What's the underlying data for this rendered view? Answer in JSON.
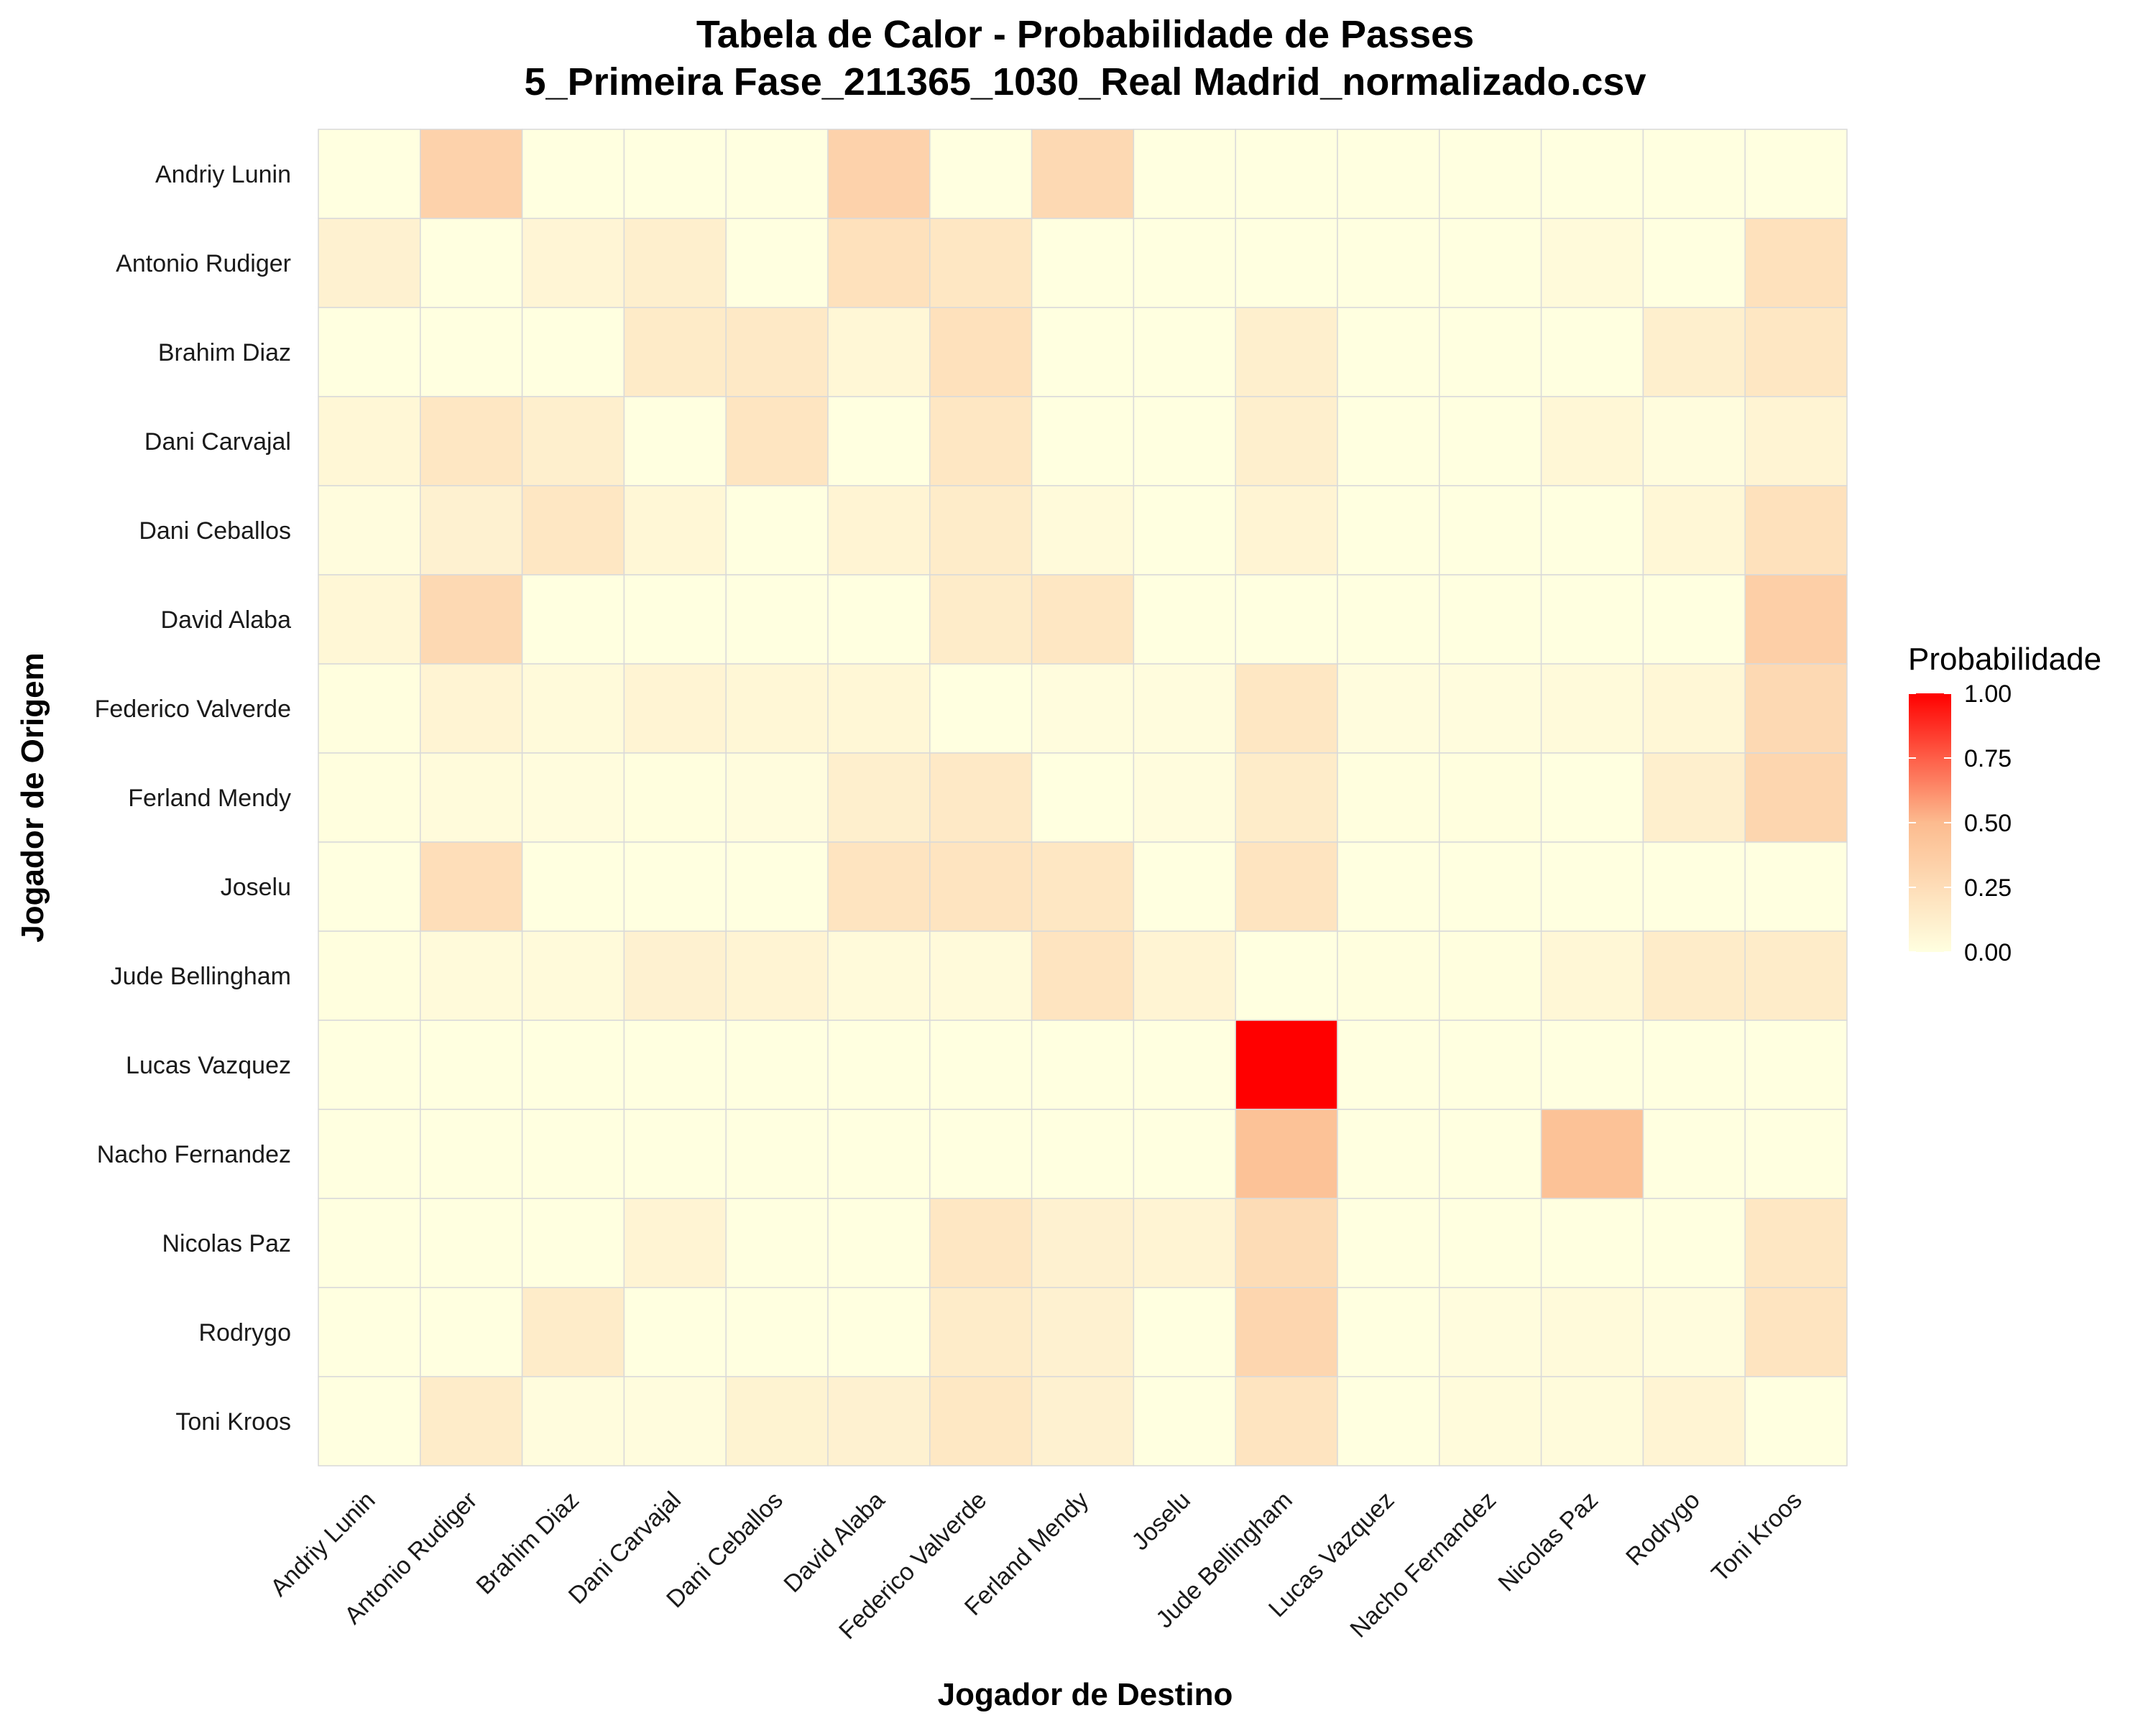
{
  "chart_data": {
    "type": "heatmap",
    "title": "Tabela de Calor - Probabilidade de Passes",
    "subtitle": "5_Primeira Fase_211365_1030_Real Madrid_normalizado.csv",
    "xlabel": "Jogador de Destino",
    "ylabel": "Jogador de Origem",
    "x_categories": [
      "Andriy Lunin",
      "Antonio Rudiger",
      "Brahim Diaz",
      "Dani Carvajal",
      "Dani Ceballos",
      "David Alaba",
      "Federico Valverde",
      "Ferland Mendy",
      "Joselu",
      "Jude Bellingham",
      "Lucas Vazquez",
      "Nacho Fernandez",
      "Nicolas Paz",
      "Rodrygo",
      "Toni Kroos"
    ],
    "y_categories": [
      "Andriy Lunin",
      "Antonio Rudiger",
      "Brahim Diaz",
      "Dani Carvajal",
      "Dani Ceballos",
      "David Alaba",
      "Federico Valverde",
      "Ferland Mendy",
      "Joselu",
      "Jude Bellingham",
      "Lucas Vazquez",
      "Nacho Fernandez",
      "Nicolas Paz",
      "Rodrygo",
      "Toni Kroos"
    ],
    "values": [
      [
        0.0,
        0.33,
        0.0,
        0.0,
        0.0,
        0.33,
        0.0,
        0.28,
        0.0,
        0.0,
        0.0,
        0.0,
        0.0,
        0.0,
        0.0
      ],
      [
        0.1,
        0.0,
        0.07,
        0.12,
        0.0,
        0.22,
        0.18,
        0.0,
        0.0,
        0.0,
        0.0,
        0.0,
        0.04,
        0.0,
        0.22
      ],
      [
        0.0,
        0.0,
        0.0,
        0.15,
        0.16,
        0.06,
        0.22,
        0.0,
        0.0,
        0.12,
        0.0,
        0.0,
        0.0,
        0.12,
        0.18
      ],
      [
        0.06,
        0.18,
        0.12,
        0.0,
        0.19,
        0.0,
        0.18,
        0.0,
        0.0,
        0.12,
        0.0,
        0.0,
        0.06,
        0.02,
        0.08
      ],
      [
        0.02,
        0.1,
        0.18,
        0.06,
        0.0,
        0.08,
        0.14,
        0.04,
        0.0,
        0.08,
        0.0,
        0.0,
        0.0,
        0.06,
        0.22
      ],
      [
        0.06,
        0.28,
        0.0,
        0.0,
        0.0,
        0.0,
        0.14,
        0.18,
        0.0,
        0.0,
        0.0,
        0.0,
        0.0,
        0.0,
        0.35
      ],
      [
        0.01,
        0.08,
        0.04,
        0.08,
        0.06,
        0.06,
        0.0,
        0.02,
        0.02,
        0.18,
        0.02,
        0.02,
        0.04,
        0.06,
        0.28
      ],
      [
        0.01,
        0.03,
        0.02,
        0.01,
        0.02,
        0.12,
        0.16,
        0.0,
        0.02,
        0.14,
        0.01,
        0.01,
        0.0,
        0.12,
        0.3
      ],
      [
        0.0,
        0.24,
        0.0,
        0.0,
        0.0,
        0.2,
        0.2,
        0.18,
        0.0,
        0.2,
        0.0,
        0.0,
        0.0,
        0.0,
        0.0
      ],
      [
        0.01,
        0.04,
        0.04,
        0.1,
        0.08,
        0.04,
        0.04,
        0.2,
        0.08,
        0.0,
        0.01,
        0.01,
        0.06,
        0.14,
        0.14
      ],
      [
        0.0,
        0.0,
        0.0,
        0.0,
        0.0,
        0.0,
        0.0,
        0.0,
        0.0,
        1.0,
        0.0,
        0.0,
        0.0,
        0.0,
        0.0
      ],
      [
        0.0,
        0.0,
        0.0,
        0.0,
        0.0,
        0.0,
        0.0,
        0.0,
        0.0,
        0.45,
        0.0,
        0.0,
        0.45,
        0.0,
        0.0
      ],
      [
        0.0,
        0.0,
        0.0,
        0.08,
        0.0,
        0.0,
        0.18,
        0.1,
        0.08,
        0.26,
        0.0,
        0.0,
        0.0,
        0.0,
        0.18
      ],
      [
        0.0,
        0.0,
        0.14,
        0.0,
        0.0,
        0.0,
        0.14,
        0.1,
        0.0,
        0.3,
        0.0,
        0.02,
        0.04,
        0.02,
        0.2
      ],
      [
        0.0,
        0.14,
        0.02,
        0.02,
        0.09,
        0.1,
        0.17,
        0.1,
        0.0,
        0.2,
        0.0,
        0.03,
        0.03,
        0.08,
        0.0
      ]
    ],
    "legend": {
      "title": "Probabilidade",
      "ticks": [
        "0.00",
        "0.25",
        "0.50",
        "0.75",
        "1.00"
      ],
      "position": "right"
    },
    "color_scale": {
      "low": "#ffffe0",
      "mid": "#fcbb8f",
      "high": "#ff0000"
    },
    "grid": true
  }
}
